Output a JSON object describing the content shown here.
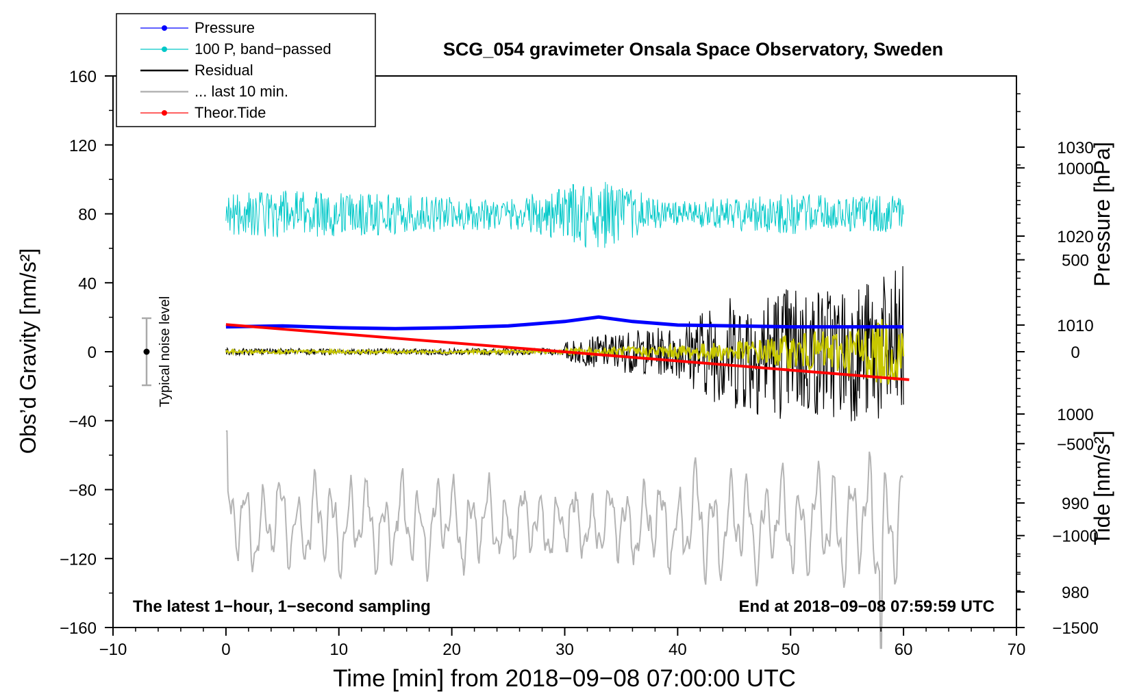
{
  "chart_data": {
    "type": "line",
    "title": "SCG_054 gravimeter Onsala Space Observatory, Sweden",
    "xlabel": "Time [min] from 2018−09−08 07:00:00 UTC",
    "ylabel_left": "Obs’d Gravity [nm/s²]",
    "ylabel_right_top": "Pressure [hPa]",
    "ylabel_right_bottom": "Tide [nm/s²]",
    "xlim": [
      -10,
      70
    ],
    "ylim_left": [
      -160,
      160
    ],
    "ylim_pressure": [
      976,
      1038
    ],
    "ylim_tide": [
      -1500,
      1500
    ],
    "x_ticks": [
      -10,
      0,
      10,
      20,
      30,
      40,
      50,
      60,
      70
    ],
    "x_tick_labels": [
      "−10",
      "0",
      "10",
      "20",
      "30",
      "40",
      "50",
      "60",
      "70"
    ],
    "y_left_ticks": [
      -160,
      -120,
      -80,
      -40,
      0,
      40,
      80,
      120,
      160
    ],
    "y_left_tick_labels": [
      "−160",
      "−120",
      "−80",
      "−40",
      "0",
      "40",
      "80",
      "120",
      "160"
    ],
    "y_pressure_ticks": [
      980,
      990,
      1000,
      1010,
      1020,
      1030
    ],
    "y_pressure_tick_labels": [
      "980",
      "990",
      "1000",
      "1010",
      "1020",
      "1030"
    ],
    "y_tide_ticks": [
      -1500,
      -1000,
      -500,
      0,
      500,
      1000
    ],
    "y_tide_tick_labels": [
      "−1500",
      "−1000",
      "−500",
      "0",
      "500",
      "1000"
    ],
    "legend": [
      {
        "label": "Pressure",
        "color": "#0000ff",
        "marker": true
      },
      {
        "label": "100 P, band−passed",
        "color": "#00c8c8",
        "marker": true
      },
      {
        "label": "Residual",
        "color": "#000000",
        "marker": false
      },
      {
        "label": "... last 10 min.",
        "color": "#b4b4b4",
        "marker": false
      },
      {
        "label": "Theor.Tide",
        "color": "#ff0000",
        "marker": true
      }
    ],
    "legend_position": "top-left",
    "annotation_left": "The latest 1−hour, 1−second sampling",
    "annotation_right": "End at 2018−09−08 07:59:59 UTC",
    "noise_label": "Typical noise level",
    "noise_bar": {
      "x": -7,
      "center": 0,
      "half_range": 20
    },
    "series": [
      {
        "name": "Pressure",
        "axis": "pressure",
        "color": "#0000ff",
        "x": [
          0,
          5,
          10,
          15,
          20,
          25,
          30,
          33,
          36,
          40,
          45,
          50,
          55,
          60
        ],
        "y": [
          1009.8,
          1009.9,
          1009.7,
          1009.6,
          1009.7,
          1009.9,
          1010.4,
          1010.9,
          1010.4,
          1010.0,
          1009.9,
          1009.8,
          1009.8,
          1009.8
        ]
      },
      {
        "name": "100 P, band−passed",
        "axis": "left",
        "color": "#00c8c8",
        "x_range": [
          0,
          60
        ],
        "center": 80,
        "envelope": {
          "x": [
            0,
            5,
            10,
            15,
            20,
            25,
            30,
            33,
            36,
            40,
            45,
            50,
            55,
            60
          ],
          "amp": [
            12,
            14,
            13,
            12,
            10,
            9,
            16,
            22,
            14,
            7,
            10,
            12,
            10,
            11
          ]
        }
      },
      {
        "name": "Residual",
        "axis": "left",
        "color": "#000000",
        "x_range": [
          0,
          60
        ],
        "center": 0,
        "envelope": {
          "x": [
            0,
            10,
            20,
            29.9,
            30.1,
            35,
            40,
            42,
            45,
            50,
            55,
            59,
            60
          ],
          "amp": [
            2,
            2,
            2,
            2,
            6,
            12,
            15,
            25,
            35,
            40,
            40,
            45,
            55
          ]
        }
      },
      {
        "name": "Residual smoothed",
        "axis": "left",
        "color": "#c8c800",
        "x_range": [
          0,
          60
        ],
        "center": 0,
        "envelope": {
          "x": [
            0,
            29.9,
            30.1,
            40,
            45,
            50,
            55,
            60
          ],
          "amp": [
            1,
            1,
            2,
            4,
            6,
            10,
            14,
            22
          ]
        }
      },
      {
        "name": "... last 10 min.",
        "axis": "left",
        "color": "#b4b4b4",
        "x_range": [
          0,
          60
        ],
        "center": -100,
        "envelope": {
          "x": [
            0,
            10,
            20,
            30,
            40,
            42,
            45,
            50,
            55,
            58,
            60
          ],
          "amp": [
            30,
            30,
            28,
            22,
            28,
            38,
            32,
            32,
            38,
            45,
            45
          ]
        },
        "endpoints": {
          "x": [
            0,
            58,
            60
          ],
          "y": [
            -46,
            -172,
            -73
          ]
        }
      },
      {
        "name": "Theor.Tide",
        "axis": "tide",
        "color": "#ff0000",
        "x": [
          0,
          60.5
        ],
        "y": [
          148,
          -152
        ]
      }
    ]
  }
}
